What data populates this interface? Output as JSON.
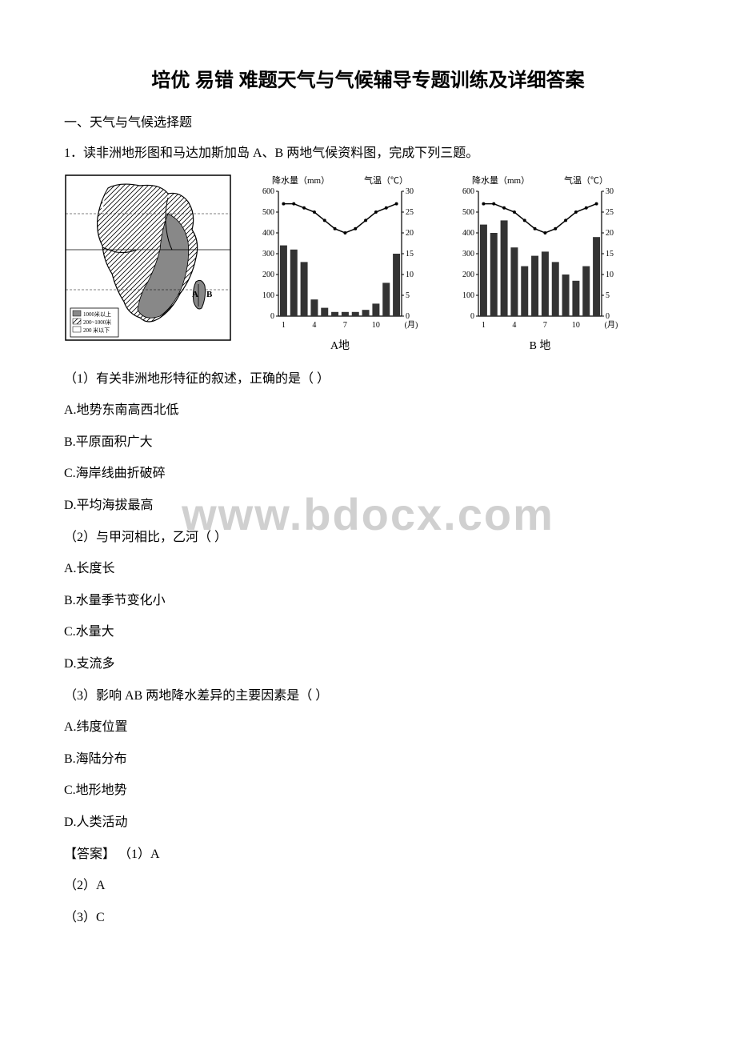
{
  "title": "培优 易错 难题天气与气候辅导专题训练及详细答案",
  "section_header": "一、天气与气候选择题",
  "question_intro": "1．读非洲地形图和马达加斯加岛 A、B 两地气候资料图，完成下列三题。",
  "watermark": "www.bdocx.com",
  "map": {
    "legend_high": "1000米以上",
    "legend_mid": "200~1000米",
    "legend_low": "200 米以下",
    "label_a": "A",
    "label_b": "B"
  },
  "chart_a": {
    "label": "A地",
    "precip_label": "降水量（mm）",
    "temp_label": "气温（℃）",
    "precip_ylim": [
      0,
      600
    ],
    "precip_ticks": [
      0,
      100,
      200,
      300,
      400,
      500,
      600
    ],
    "temp_ylim": [
      0,
      30
    ],
    "temp_ticks": [
      0,
      5,
      10,
      15,
      20,
      25,
      30
    ],
    "x_labels": [
      "1",
      "4",
      "7",
      "10",
      "(月)"
    ],
    "months": [
      1,
      2,
      3,
      4,
      5,
      6,
      7,
      8,
      9,
      10,
      11,
      12
    ],
    "precip_values": [
      340,
      320,
      260,
      80,
      40,
      20,
      20,
      20,
      30,
      60,
      160,
      300
    ],
    "temp_values": [
      27,
      27,
      26,
      25,
      23,
      21,
      20,
      21,
      23,
      25,
      26,
      27
    ],
    "bar_color": "#333333",
    "line_color": "#000000",
    "axis_color": "#000000",
    "background_color": "#ffffff",
    "axis_fontsize": 11
  },
  "chart_b": {
    "label": "B 地",
    "precip_label": "降水量（mm）",
    "temp_label": "气温（℃）",
    "precip_ylim": [
      0,
      600
    ],
    "precip_ticks": [
      0,
      100,
      200,
      300,
      400,
      500,
      600
    ],
    "temp_ylim": [
      0,
      30
    ],
    "temp_ticks": [
      0,
      5,
      10,
      15,
      20,
      25,
      30
    ],
    "x_labels": [
      "1",
      "4",
      "7",
      "10",
      "(月)"
    ],
    "months": [
      1,
      2,
      3,
      4,
      5,
      6,
      7,
      8,
      9,
      10,
      11,
      12
    ],
    "precip_values": [
      440,
      400,
      460,
      330,
      240,
      290,
      310,
      260,
      200,
      170,
      240,
      380
    ],
    "temp_values": [
      27,
      27,
      26,
      25,
      23,
      21,
      20,
      21,
      23,
      25,
      26,
      27
    ],
    "bar_color": "#333333",
    "line_color": "#000000",
    "axis_color": "#000000",
    "background_color": "#ffffff",
    "axis_fontsize": 11
  },
  "sub_questions": {
    "q1": "（1）有关非洲地形特征的叙述，正确的是（   ）",
    "q1_options": {
      "A": "A.地势东南高西北低",
      "B": "B.平原面积广大",
      "C": "C.海岸线曲折破碎",
      "D": "D.平均海拔最高"
    },
    "q2": "（2）与甲河相比，乙河（    ）",
    "q2_options": {
      "A": "A.长度长",
      "B": "B.水量季节变化小",
      "C": "C.水量大",
      "D": "D.支流多"
    },
    "q3": "（3）影响 AB 两地降水差异的主要因素是（   ）",
    "q3_options": {
      "A": "A.纬度位置",
      "B": "B.海陆分布",
      "C": "C.地形地势",
      "D": "D.人类活动"
    }
  },
  "answers": {
    "label": "【答案】 （1）A",
    "a2": "（2）A",
    "a3": "（3）C"
  }
}
